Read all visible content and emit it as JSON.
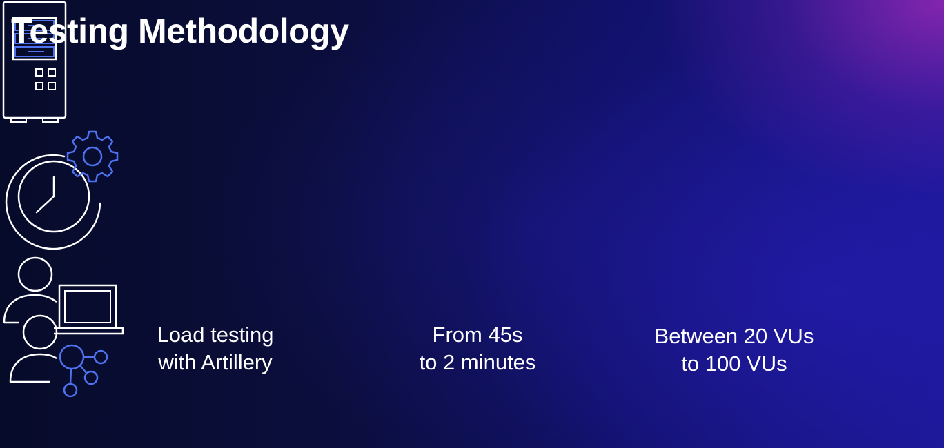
{
  "slide": {
    "title": "Testing Methodology"
  },
  "items": [
    {
      "icon": "server-tower-icon",
      "line1": "Load testing",
      "line2": "with Artillery"
    },
    {
      "icon": "clock-gear-icon",
      "line1": "From 45s",
      "line2": "to 2 minutes"
    },
    {
      "icon": "users-laptop-network-icon",
      "line1": "Between 20 VUs",
      "line2": "to 100 VUs"
    }
  ],
  "colors": {
    "icon_line": "#ffffff",
    "icon_accent": "#4f73f0",
    "text": "#ffffff"
  }
}
